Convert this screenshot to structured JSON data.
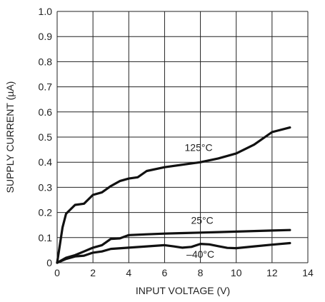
{
  "chart_data": {
    "type": "line",
    "xlabel": "INPUT VOLTAGE (V)",
    "ylabel": "SUPPLY CURRENT (µA)",
    "xlim": [
      0,
      14
    ],
    "ylim": [
      0,
      1.0
    ],
    "xticks": [
      "0",
      "2",
      "4",
      "6",
      "8",
      "10",
      "12",
      "14"
    ],
    "yticks": [
      "0",
      "0.1",
      "0.2",
      "0.3",
      "0.4",
      "0.5",
      "0.6",
      "0.7",
      "0.8",
      "0.9",
      "1.0"
    ],
    "grid": true,
    "series": [
      {
        "name": "125°C",
        "x": [
          0,
          0.3,
          0.5,
          1.0,
          1.5,
          2.0,
          2.5,
          3.0,
          3.5,
          4.0,
          4.5,
          5.0,
          6.0,
          7.0,
          8.0,
          9.0,
          10.0,
          11.0,
          12.0,
          13.0
        ],
        "y": [
          0,
          0.14,
          0.195,
          0.23,
          0.235,
          0.27,
          0.28,
          0.305,
          0.325,
          0.335,
          0.34,
          0.365,
          0.38,
          0.39,
          0.4,
          0.415,
          0.435,
          0.47,
          0.52,
          0.538
        ]
      },
      {
        "name": "25°C",
        "x": [
          0,
          0.5,
          1.0,
          1.5,
          2.0,
          2.5,
          3.0,
          3.5,
          4.0,
          5.0,
          6.0,
          7.0,
          8.0,
          9.0,
          10.0,
          11.0,
          12.0,
          13.0
        ],
        "y": [
          0,
          0.02,
          0.03,
          0.045,
          0.06,
          0.07,
          0.095,
          0.097,
          0.11,
          0.113,
          0.116,
          0.118,
          0.12,
          0.122,
          0.124,
          0.126,
          0.128,
          0.13
        ]
      },
      {
        "name": "–40°C",
        "x": [
          0,
          0.5,
          1.0,
          1.5,
          2.0,
          2.5,
          3.0,
          4.0,
          5.0,
          6.0,
          6.5,
          7.0,
          7.5,
          8.0,
          8.5,
          9.0,
          9.5,
          10.0,
          11.0,
          12.0,
          13.0
        ],
        "y": [
          0,
          0.015,
          0.025,
          0.028,
          0.04,
          0.045,
          0.055,
          0.06,
          0.065,
          0.07,
          0.065,
          0.06,
          0.063,
          0.075,
          0.073,
          0.066,
          0.059,
          0.058,
          0.065,
          0.072,
          0.078
        ]
      }
    ],
    "annotations": [
      {
        "text": "125°C",
        "x": 7.9,
        "y": 0.445
      },
      {
        "text": "25°C",
        "x": 8.1,
        "y": 0.155
      },
      {
        "text": "–40°C",
        "x": 8.0,
        "y": 0.02
      }
    ]
  }
}
